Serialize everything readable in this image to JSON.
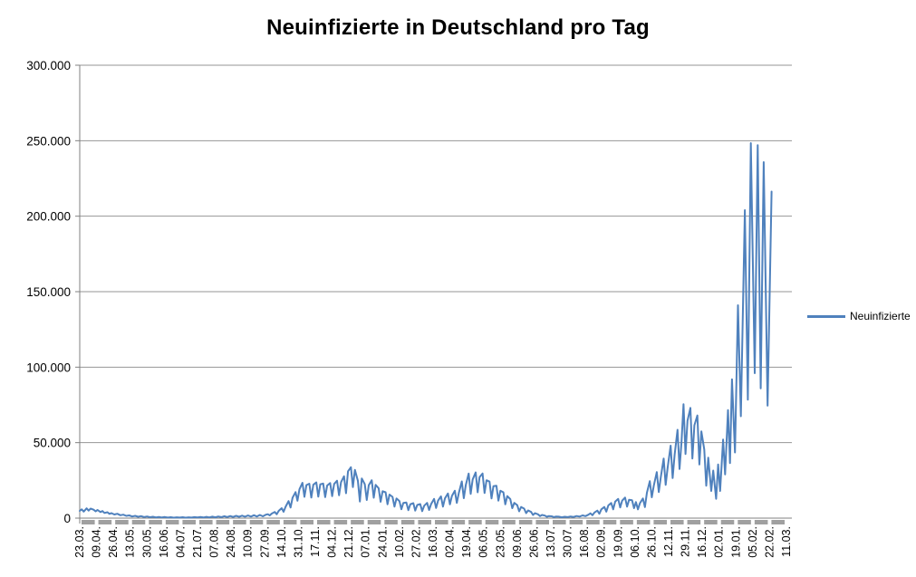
{
  "title": "Neuinfizierte in Deutschland pro Tag",
  "legend": {
    "label": "Neuinfizierte",
    "line_color": "#4F81BD"
  },
  "colors": {
    "series_line": "#4F81BD",
    "gridline": "#969696",
    "axis_line": "#808080",
    "tick_band": "#a0a0a0",
    "label_text": "#000000"
  },
  "chart_data": {
    "type": "line",
    "title": "Neuinfizierte in Deutschland pro Tag",
    "xlabel": "",
    "ylabel": "",
    "grid": "horizontal",
    "legend_position": "right",
    "ylim": [
      0,
      300000
    ],
    "y_ticks": [
      0,
      50000,
      100000,
      150000,
      200000,
      250000,
      300000
    ],
    "y_tick_labels": [
      "0",
      "50.000",
      "100.000",
      "150.000",
      "200.000",
      "250.000",
      "300.000"
    ],
    "x_units_per_tick": 17,
    "x_tick_labels": [
      "23.03.",
      "09.04.",
      "26.04.",
      "13.05.",
      "30.05.",
      "16.06.",
      "04.07.",
      "21.07.",
      "07.08.",
      "24.08.",
      "10.09.",
      "27.09.",
      "14.10.",
      "31.10.",
      "17.11.",
      "04.12.",
      "21.12.",
      "07.01.",
      "24.01.",
      "10.02.",
      "27.02.",
      "16.03.",
      "02.04.",
      "19.04.",
      "06.05.",
      "23.05.",
      "09.06.",
      "26.06.",
      "13.07.",
      "30.07.",
      "16.08.",
      "02.09.",
      "19.09.",
      "06.10.",
      "26.10.",
      "12.11.",
      "29.11.",
      "16.12.",
      "02.01.",
      "19.01.",
      "05.02.",
      "22.02.",
      "11.03."
    ],
    "series": [
      {
        "name": "Neuinfizierte",
        "color": "#4F81BD",
        "points": [
          [
            0,
            4800
          ],
          [
            2,
            5800
          ],
          [
            4,
            4300
          ],
          [
            7,
            6500
          ],
          [
            9,
            5000
          ],
          [
            11,
            6300
          ],
          [
            14,
            5600
          ],
          [
            16,
            4500
          ],
          [
            18,
            5400
          ],
          [
            21,
            4000
          ],
          [
            23,
            4700
          ],
          [
            25,
            3400
          ],
          [
            28,
            3900
          ],
          [
            30,
            2800
          ],
          [
            32,
            3300
          ],
          [
            35,
            2400
          ],
          [
            38,
            2900
          ],
          [
            41,
            1900
          ],
          [
            44,
            2300
          ],
          [
            47,
            1500
          ],
          [
            50,
            1800
          ],
          [
            53,
            1100
          ],
          [
            56,
            1500
          ],
          [
            59,
            900
          ],
          [
            62,
            1300
          ],
          [
            65,
            700
          ],
          [
            68,
            1100
          ],
          [
            71,
            600
          ],
          [
            74,
            900
          ],
          [
            77,
            500
          ],
          [
            80,
            800
          ],
          [
            83,
            400
          ],
          [
            86,
            700
          ],
          [
            89,
            350
          ],
          [
            92,
            600
          ],
          [
            95,
            300
          ],
          [
            98,
            550
          ],
          [
            101,
            350
          ],
          [
            104,
            600
          ],
          [
            107,
            300
          ],
          [
            110,
            550
          ],
          [
            113,
            350
          ],
          [
            116,
            650
          ],
          [
            119,
            400
          ],
          [
            122,
            750
          ],
          [
            125,
            450
          ],
          [
            128,
            850
          ],
          [
            131,
            500
          ],
          [
            134,
            950
          ],
          [
            137,
            550
          ],
          [
            140,
            1100
          ],
          [
            143,
            650
          ],
          [
            146,
            1250
          ],
          [
            149,
            700
          ],
          [
            152,
            1400
          ],
          [
            155,
            800
          ],
          [
            158,
            1500
          ],
          [
            161,
            900
          ],
          [
            164,
            1600
          ],
          [
            167,
            950
          ],
          [
            170,
            1750
          ],
          [
            173,
            1000
          ],
          [
            176,
            1900
          ],
          [
            179,
            1100
          ],
          [
            182,
            2100
          ],
          [
            185,
            1200
          ],
          [
            188,
            2300
          ],
          [
            190,
            2600
          ],
          [
            192,
            1800
          ],
          [
            194,
            3000
          ],
          [
            197,
            4100
          ],
          [
            199,
            2600
          ],
          [
            201,
            4800
          ],
          [
            204,
            6600
          ],
          [
            206,
            4200
          ],
          [
            208,
            7500
          ],
          [
            211,
            11300
          ],
          [
            213,
            7000
          ],
          [
            215,
            13500
          ],
          [
            218,
            17200
          ],
          [
            220,
            11500
          ],
          [
            222,
            19100
          ],
          [
            225,
            23400
          ],
          [
            227,
            14100
          ],
          [
            229,
            21900
          ],
          [
            232,
            22800
          ],
          [
            234,
            13600
          ],
          [
            236,
            22100
          ],
          [
            239,
            23700
          ],
          [
            241,
            14200
          ],
          [
            243,
            22400
          ],
          [
            246,
            22900
          ],
          [
            248,
            13900
          ],
          [
            250,
            21600
          ],
          [
            253,
            23200
          ],
          [
            255,
            14600
          ],
          [
            257,
            22600
          ],
          [
            260,
            24800
          ],
          [
            262,
            15100
          ],
          [
            264,
            23800
          ],
          [
            267,
            27700
          ],
          [
            269,
            16500
          ],
          [
            271,
            31000
          ],
          [
            274,
            33700
          ],
          [
            276,
            20500
          ],
          [
            278,
            32000
          ],
          [
            281,
            24700
          ],
          [
            283,
            11000
          ],
          [
            285,
            26300
          ],
          [
            288,
            22500
          ],
          [
            290,
            12000
          ],
          [
            292,
            21800
          ],
          [
            295,
            25100
          ],
          [
            297,
            13500
          ],
          [
            299,
            22000
          ],
          [
            302,
            19800
          ],
          [
            304,
            10800
          ],
          [
            306,
            17800
          ],
          [
            309,
            17100
          ],
          [
            311,
            9200
          ],
          [
            313,
            15600
          ],
          [
            316,
            14100
          ],
          [
            318,
            7600
          ],
          [
            320,
            13000
          ],
          [
            323,
            11200
          ],
          [
            325,
            5900
          ],
          [
            327,
            10100
          ],
          [
            330,
            10400
          ],
          [
            332,
            5300
          ],
          [
            334,
            9200
          ],
          [
            337,
            9900
          ],
          [
            339,
            5000
          ],
          [
            341,
            8700
          ],
          [
            344,
            9300
          ],
          [
            346,
            4600
          ],
          [
            348,
            8200
          ],
          [
            351,
            10100
          ],
          [
            353,
            5400
          ],
          [
            355,
            9300
          ],
          [
            358,
            12700
          ],
          [
            360,
            6700
          ],
          [
            362,
            11600
          ],
          [
            365,
            14400
          ],
          [
            367,
            7600
          ],
          [
            369,
            13100
          ],
          [
            372,
            16300
          ],
          [
            374,
            9100
          ],
          [
            376,
            14700
          ],
          [
            379,
            18100
          ],
          [
            381,
            10100
          ],
          [
            383,
            16600
          ],
          [
            386,
            24300
          ],
          [
            388,
            13200
          ],
          [
            390,
            21900
          ],
          [
            393,
            29500
          ],
          [
            395,
            16000
          ],
          [
            397,
            25600
          ],
          [
            400,
            30300
          ],
          [
            402,
            17100
          ],
          [
            404,
            27100
          ],
          [
            407,
            29600
          ],
          [
            409,
            16600
          ],
          [
            411,
            25100
          ],
          [
            414,
            24200
          ],
          [
            416,
            13100
          ],
          [
            418,
            21100
          ],
          [
            421,
            21400
          ],
          [
            423,
            11600
          ],
          [
            425,
            18100
          ],
          [
            428,
            17100
          ],
          [
            430,
            9100
          ],
          [
            432,
            14600
          ],
          [
            435,
            12600
          ],
          [
            437,
            6600
          ],
          [
            439,
            10100
          ],
          [
            442,
            8600
          ],
          [
            444,
            4500
          ],
          [
            446,
            7400
          ],
          [
            449,
            6300
          ],
          [
            451,
            3300
          ],
          [
            453,
            5100
          ],
          [
            456,
            4100
          ],
          [
            458,
            2100
          ],
          [
            460,
            3300
          ],
          [
            463,
            2500
          ],
          [
            465,
            1300
          ],
          [
            467,
            2100
          ],
          [
            470,
            1700
          ],
          [
            472,
            900
          ],
          [
            474,
            1400
          ],
          [
            477,
            1200
          ],
          [
            479,
            650
          ],
          [
            481,
            1050
          ],
          [
            484,
            950
          ],
          [
            487,
            550
          ],
          [
            490,
            900
          ],
          [
            493,
            650
          ],
          [
            496,
            1100
          ],
          [
            499,
            800
          ],
          [
            502,
            1400
          ],
          [
            505,
            1000
          ],
          [
            508,
            1800
          ],
          [
            511,
            1300
          ],
          [
            514,
            2300
          ],
          [
            516,
            3200
          ],
          [
            518,
            1900
          ],
          [
            520,
            3700
          ],
          [
            523,
            5000
          ],
          [
            525,
            2900
          ],
          [
            527,
            5800
          ],
          [
            530,
            7400
          ],
          [
            532,
            4300
          ],
          [
            534,
            8400
          ],
          [
            537,
            10000
          ],
          [
            539,
            5800
          ],
          [
            541,
            11000
          ],
          [
            544,
            12700
          ],
          [
            546,
            7100
          ],
          [
            548,
            11600
          ],
          [
            551,
            13600
          ],
          [
            553,
            7600
          ],
          [
            555,
            12100
          ],
          [
            558,
            11900
          ],
          [
            560,
            6600
          ],
          [
            562,
            10600
          ],
          [
            564,
            5800
          ],
          [
            566,
            9900
          ],
          [
            569,
            13000
          ],
          [
            571,
            7300
          ],
          [
            573,
            16800
          ],
          [
            576,
            24500
          ],
          [
            578,
            13800
          ],
          [
            580,
            21500
          ],
          [
            583,
            30500
          ],
          [
            585,
            17300
          ],
          [
            587,
            27000
          ],
          [
            590,
            39500
          ],
          [
            592,
            22000
          ],
          [
            594,
            33500
          ],
          [
            597,
            48000
          ],
          [
            599,
            26500
          ],
          [
            601,
            42000
          ],
          [
            604,
            58500
          ],
          [
            606,
            32500
          ],
          [
            608,
            50500
          ],
          [
            610,
            75500
          ],
          [
            612,
            42500
          ],
          [
            614,
            64500
          ],
          [
            617,
            73000
          ],
          [
            619,
            39500
          ],
          [
            621,
            61500
          ],
          [
            624,
            68000
          ],
          [
            626,
            35500
          ],
          [
            628,
            57500
          ],
          [
            631,
            45500
          ],
          [
            633,
            21500
          ],
          [
            635,
            40000
          ],
          [
            638,
            18000
          ],
          [
            640,
            31500
          ],
          [
            643,
            12800
          ],
          [
            645,
            35500
          ],
          [
            647,
            18000
          ],
          [
            650,
            52000
          ],
          [
            652,
            29000
          ],
          [
            655,
            71500
          ],
          [
            657,
            36500
          ],
          [
            659,
            92000
          ],
          [
            662,
            43500
          ],
          [
            665,
            141000
          ],
          [
            668,
            67500
          ],
          [
            672,
            204000
          ],
          [
            675,
            78500
          ],
          [
            678,
            248400
          ],
          [
            682,
            96000
          ],
          [
            685,
            247000
          ],
          [
            688,
            86000
          ],
          [
            691,
            235800
          ],
          [
            695,
            74500
          ],
          [
            699,
            216300
          ]
        ]
      }
    ]
  }
}
